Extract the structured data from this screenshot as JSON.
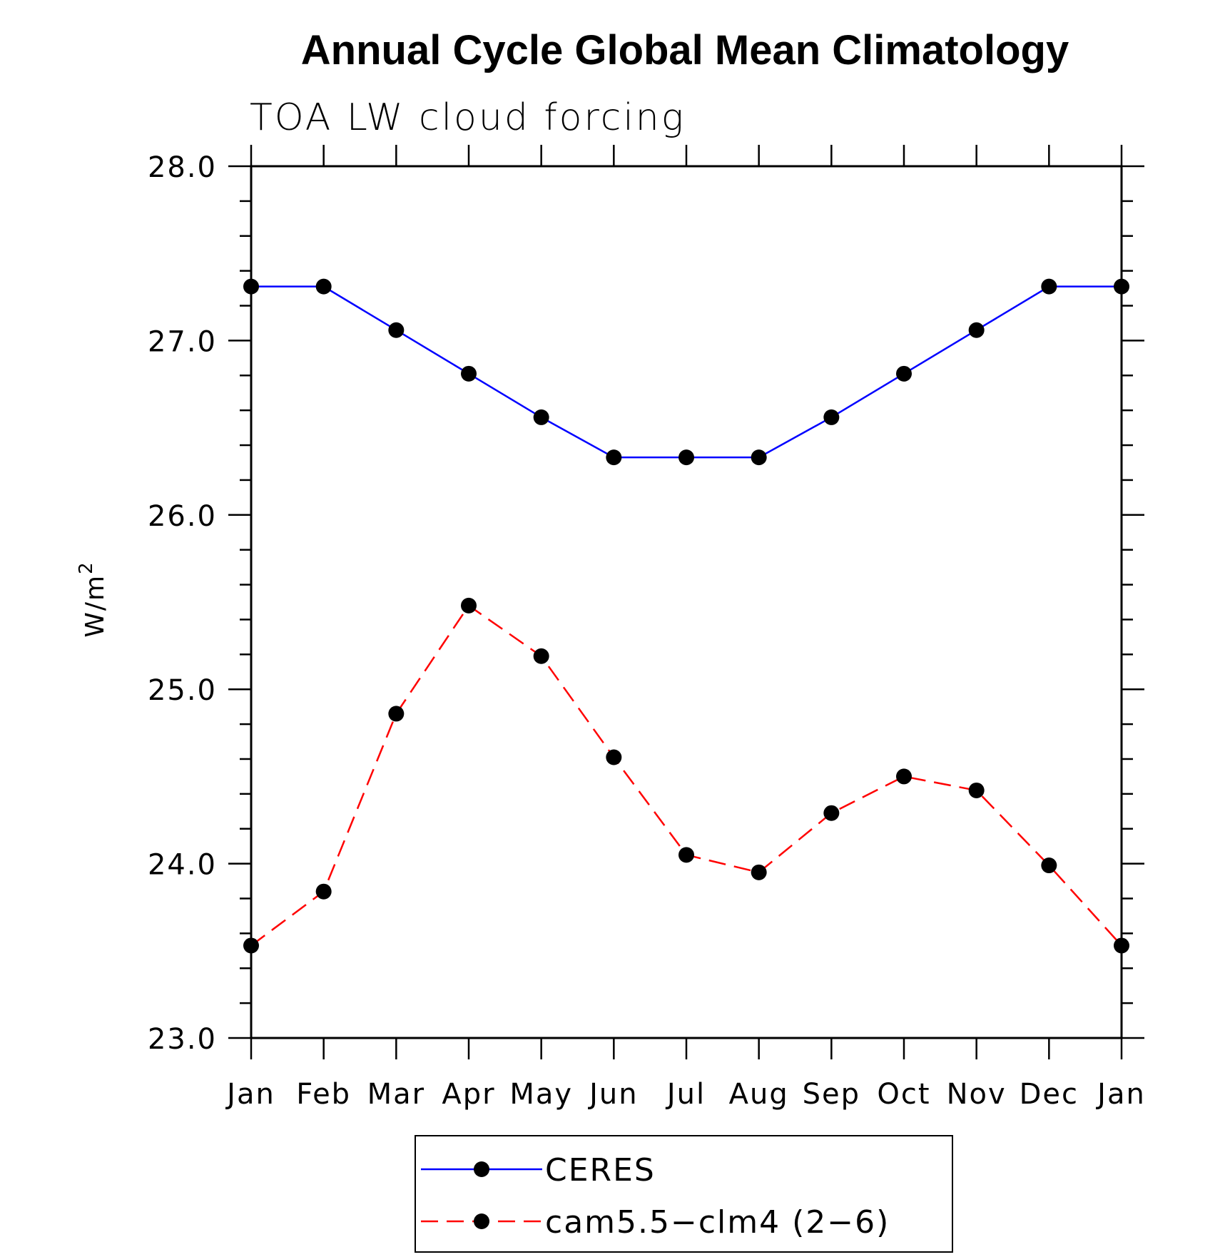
{
  "chart_data": {
    "type": "line",
    "title": "Annual Cycle Global Mean Climatology",
    "subtitle": "TOA LW cloud forcing",
    "ylabel": "W/m",
    "ylabel_superscript": "2",
    "categories": [
      "Jan",
      "Feb",
      "Mar",
      "Apr",
      "May",
      "Jun",
      "Jul",
      "Aug",
      "Sep",
      "Oct",
      "Nov",
      "Dec",
      "Jan"
    ],
    "ylim": [
      23.0,
      28.0
    ],
    "yticks": [
      "23.0",
      "24.0",
      "25.0",
      "26.0",
      "27.0",
      "28.0"
    ],
    "series": [
      {
        "name": "CERES",
        "color": "#0000ff",
        "dash": "solid",
        "marker": "filled-circle",
        "values": [
          27.31,
          27.31,
          27.06,
          26.81,
          26.56,
          26.33,
          26.33,
          26.33,
          26.56,
          26.81,
          27.06,
          27.31,
          27.31
        ]
      },
      {
        "name": "cam5.5−clm4 (2−6)",
        "color": "#ff0000",
        "dash": "dashed",
        "marker": "filled-circle",
        "values": [
          23.53,
          23.84,
          24.86,
          25.48,
          25.19,
          24.61,
          24.05,
          23.95,
          24.29,
          24.5,
          24.42,
          23.99,
          23.53
        ]
      }
    ],
    "legend_position": "bottom-center",
    "grid": false
  }
}
